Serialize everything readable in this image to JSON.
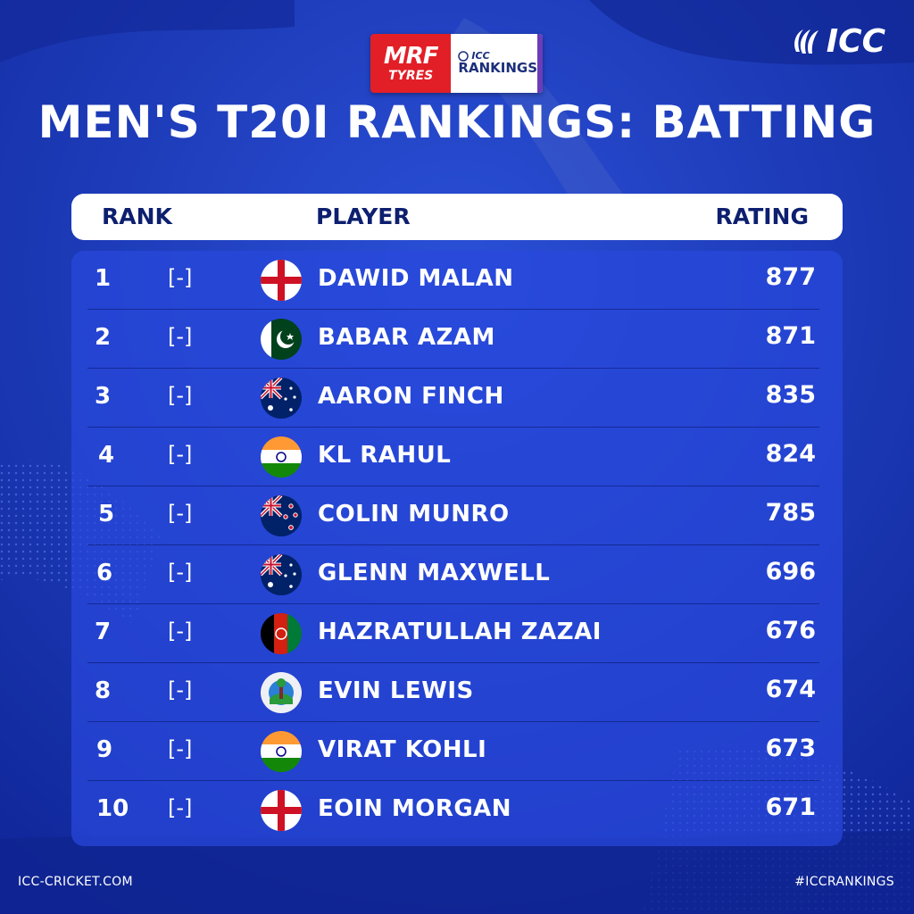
{
  "sponsor": {
    "brand": "MRF",
    "brand_sub": "TYRES",
    "icc_small": "ICC",
    "icc_big": "RANKINGS"
  },
  "logo": {
    "text": "ICC"
  },
  "title": "MEN'S T20I RANKINGS: BATTING",
  "header": {
    "rank": "RANK",
    "player": "PLAYER",
    "rating": "RATING"
  },
  "rows": [
    {
      "rank": "1",
      "move": "[-]",
      "flag": "england-flag-icon",
      "name": "DAWID MALAN",
      "rating": "877"
    },
    {
      "rank": "2",
      "move": "[-]",
      "flag": "pakistan-flag-icon",
      "name": "BABAR AZAM",
      "rating": "871"
    },
    {
      "rank": "3",
      "move": "[-]",
      "flag": "australia-flag-icon",
      "name": "AARON FINCH",
      "rating": "835"
    },
    {
      "rank": "4",
      "move": "[-]",
      "flag": "india-flag-icon",
      "name": "KL RAHUL",
      "rating": "824"
    },
    {
      "rank": "5",
      "move": "[-]",
      "flag": "new-zealand-flag-icon",
      "name": "COLIN MUNRO",
      "rating": "785"
    },
    {
      "rank": "6",
      "move": "[-]",
      "flag": "australia-flag-icon",
      "name": "GLENN MAXWELL",
      "rating": "696"
    },
    {
      "rank": "7",
      "move": "[-]",
      "flag": "afghanistan-flag-icon",
      "name": "HAZRATULLAH ZAZAI",
      "rating": "676"
    },
    {
      "rank": "8",
      "move": "[-]",
      "flag": "west-indies-flag-icon",
      "name": "EVIN LEWIS",
      "rating": "674"
    },
    {
      "rank": "9",
      "move": "[-]",
      "flag": "india-flag-icon",
      "name": "VIRAT KOHLI",
      "rating": "673"
    },
    {
      "rank": "10",
      "move": "[-]",
      "flag": "england-flag-icon",
      "name": "EOIN MORGAN",
      "rating": "671"
    }
  ],
  "footer": {
    "left": "ICC-CRICKET.COM",
    "right": "#ICCRANKINGS"
  },
  "colors": {
    "background": "#1b3bb8",
    "panel": "#2848dc",
    "header_text": "#0d1f6e",
    "sponsor_red": "#e21f26"
  }
}
